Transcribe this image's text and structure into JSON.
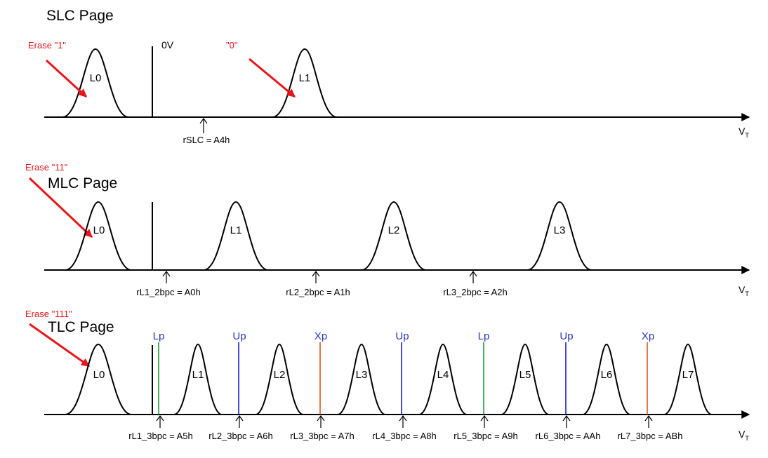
{
  "colors": {
    "ink": "#000000",
    "erase_red": "#e8161c",
    "lower_page": "#1f9a3a",
    "upper_page": "#2020c8",
    "extra_page": "#e0551f",
    "page_label": "#2a35b8"
  },
  "axis_label": {
    "main": "V",
    "sub": "T"
  },
  "zero_volt_label": "0V",
  "slc": {
    "title": "SLC Page",
    "erase_label": "Erase \"1\"",
    "program_label": "\"0\"",
    "levels": [
      "L0",
      "L1"
    ],
    "read_refs": [
      "rSLC = A4h"
    ]
  },
  "mlc": {
    "title": "MLC Page",
    "erase_label": "Erase \"11\"",
    "levels": [
      "L0",
      "L1",
      "L2",
      "L3"
    ],
    "read_refs": [
      "rL1_2bpc = A0h",
      "rL2_2bpc = A1h",
      "rL3_2bpc = A2h"
    ]
  },
  "tlc": {
    "title": "TLC Page",
    "erase_label": "Erase \"111\"",
    "levels": [
      "L0",
      "L1",
      "L2",
      "L3",
      "L4",
      "L5",
      "L6",
      "L7"
    ],
    "page_marks": [
      "Lp",
      "Up",
      "Xp",
      "Up",
      "Lp",
      "Up",
      "Xp"
    ],
    "page_mark_types": [
      "lower",
      "upper",
      "extra",
      "upper",
      "lower",
      "upper",
      "extra"
    ],
    "read_refs": [
      "rL1_3bpc = A5h",
      "rL2_3bpc = A6h",
      "rL3_3bpc = A7h",
      "rL4_3bpc = A8h",
      "rL5_3bpc = A9h",
      "rL6_3bpc = AAh",
      "rL7_3bpc = ABh"
    ]
  }
}
